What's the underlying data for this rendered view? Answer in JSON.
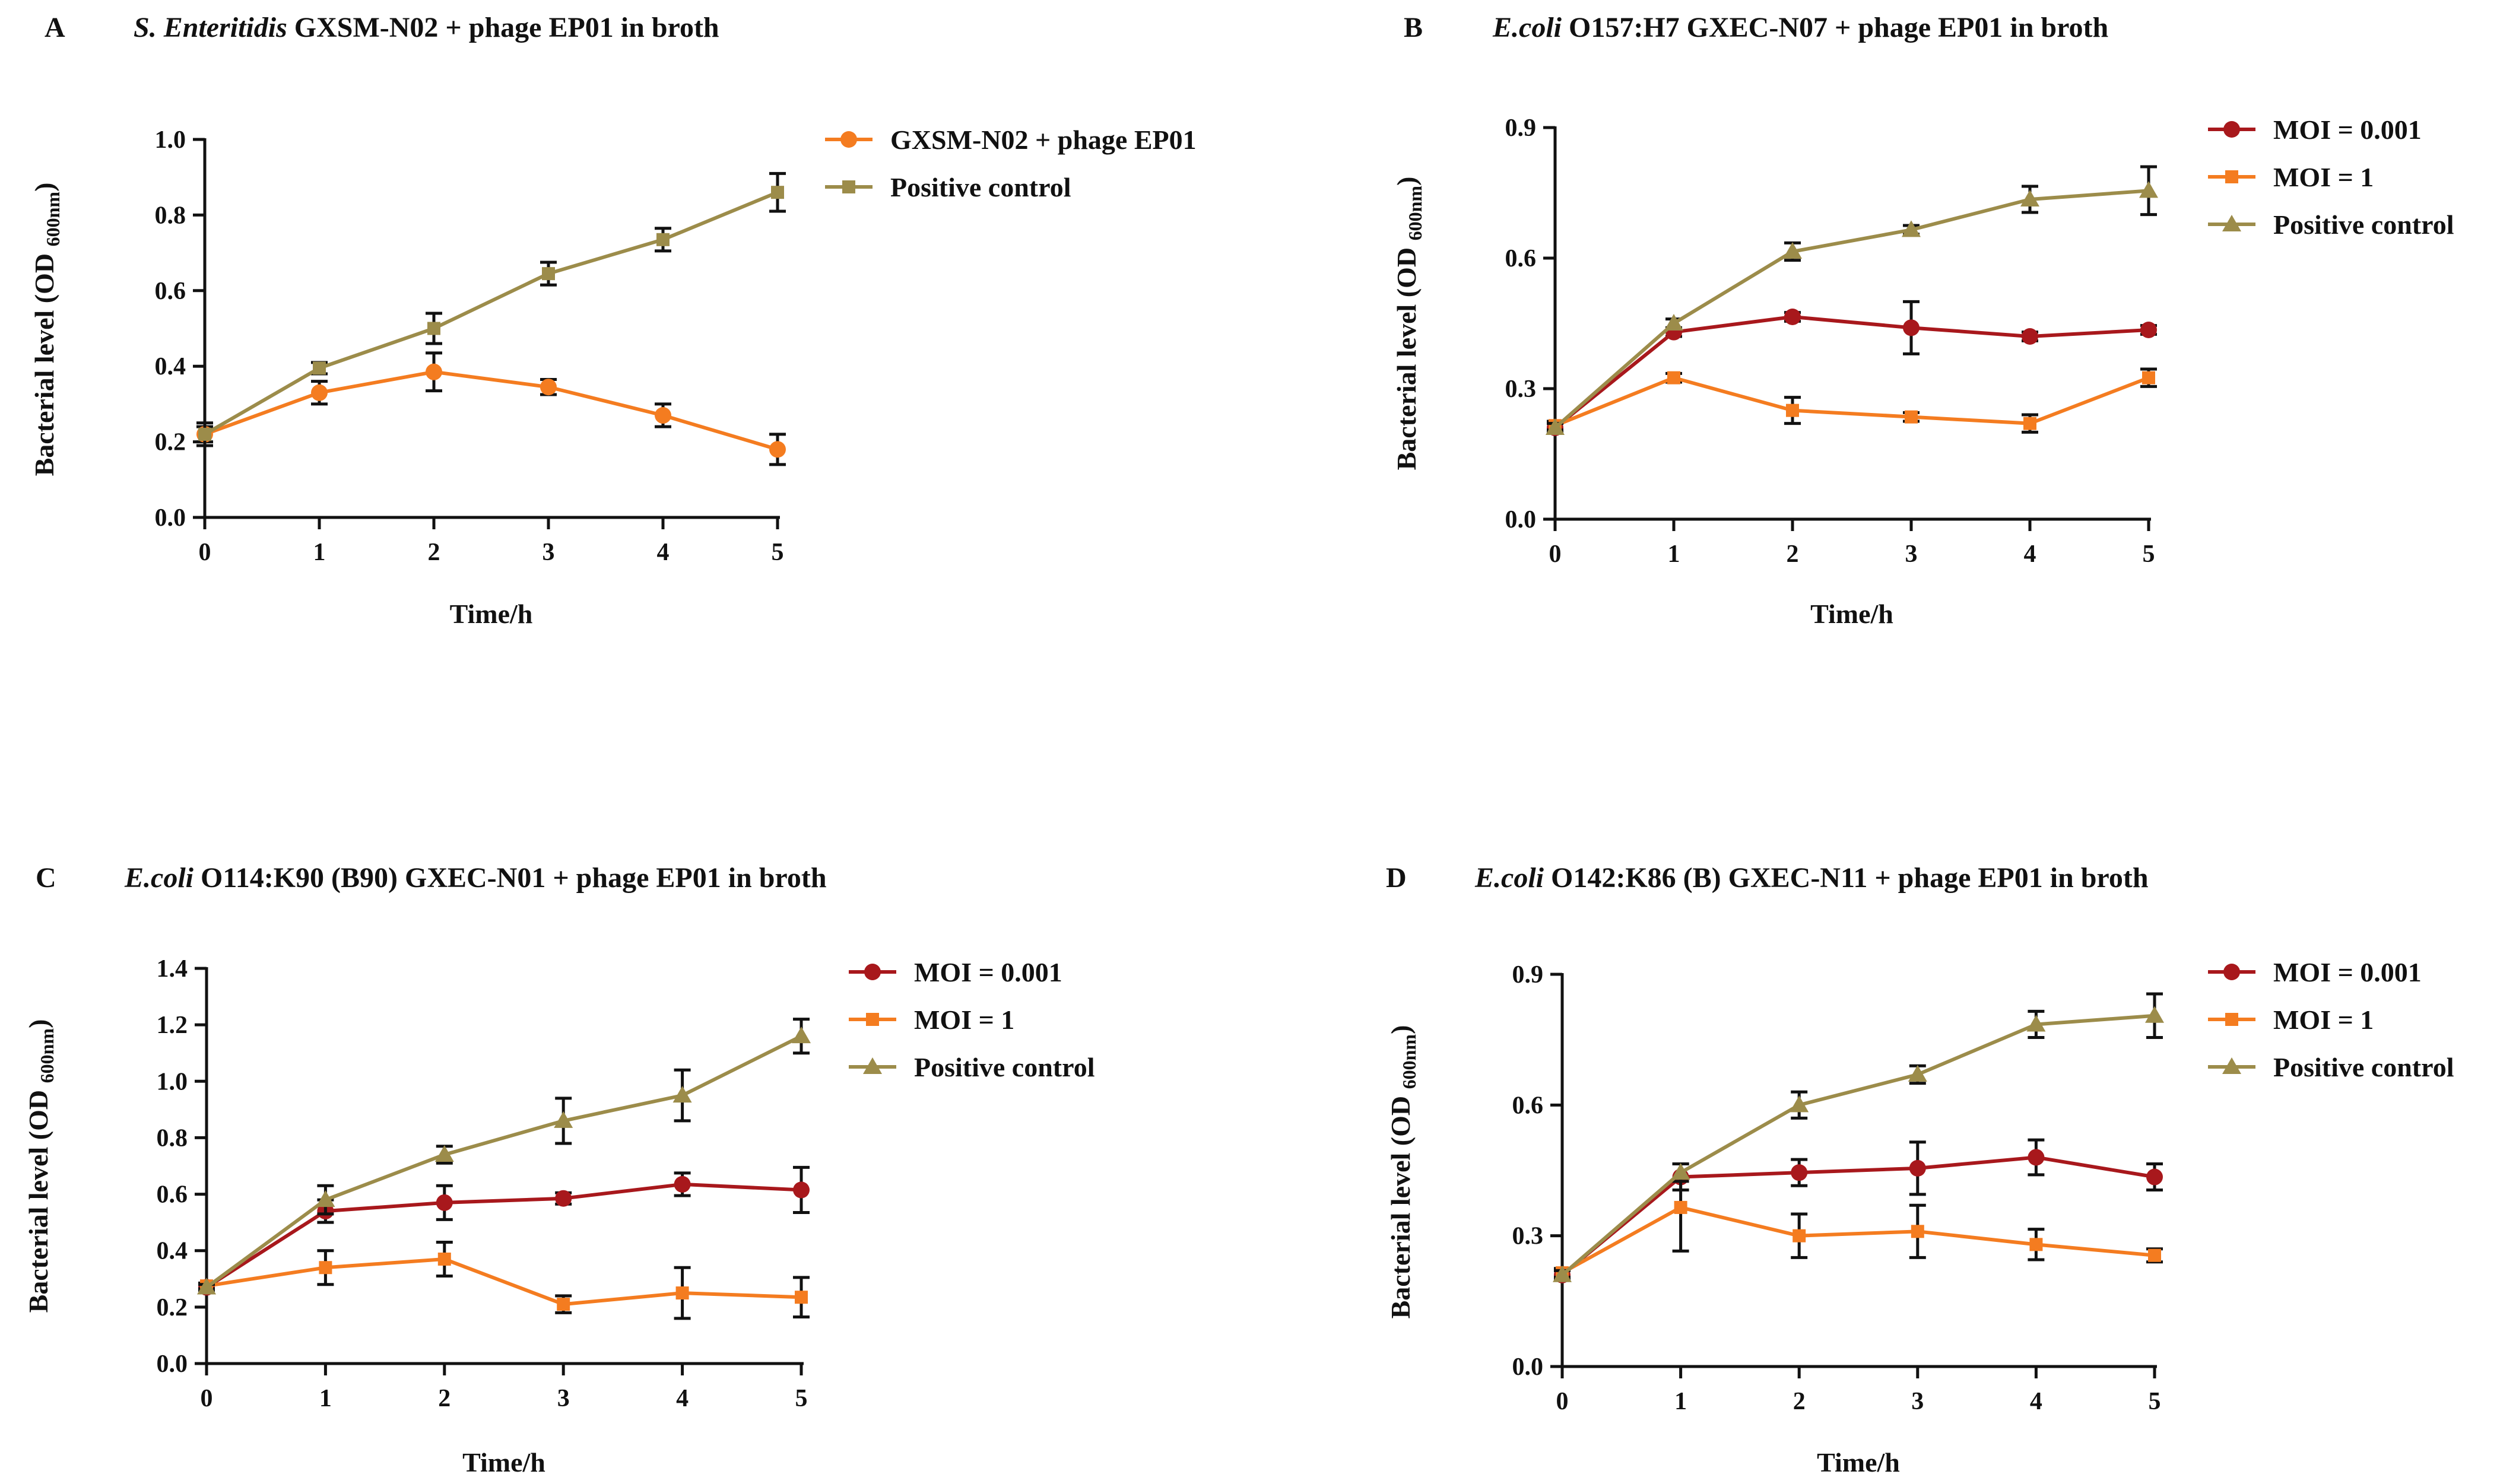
{
  "chart_data": [
    {
      "type": "line",
      "panel": "A",
      "title_italic": "S. Enteritidis",
      "title_rest": " GXSM-N02 + phage EP01 in broth",
      "xlabel": "Time/h",
      "ylabel_main": "Bacterial level (OD ",
      "ylabel_sub": "600nm",
      "ylabel_close": ")",
      "xlim": [
        0,
        5
      ],
      "ylim": [
        0,
        1.0
      ],
      "xticks": [
        "0",
        "1",
        "2",
        "3",
        "4",
        "5"
      ],
      "yticks": [
        "0.0",
        "0.2",
        "0.4",
        "0.6",
        "0.8",
        "1.0"
      ],
      "x": [
        0,
        1,
        2,
        3,
        4,
        5
      ],
      "series": [
        {
          "name": "GXSM-N02 + phage EP01",
          "color": "#f47c20",
          "marker": "circle",
          "values": [
            0.22,
            0.33,
            0.385,
            0.345,
            0.27,
            0.18
          ],
          "errors": [
            0.02,
            0.03,
            0.05,
            0.02,
            0.03,
            0.04
          ]
        },
        {
          "name": "Positive control",
          "color": "#9c8c4a",
          "marker": "square",
          "values": [
            0.22,
            0.395,
            0.5,
            0.645,
            0.735,
            0.86
          ],
          "errors": [
            0.03,
            0.015,
            0.04,
            0.03,
            0.03,
            0.05
          ]
        }
      ]
    },
    {
      "type": "line",
      "panel": "B",
      "title_italic": "E.coli",
      "title_rest": " O157:H7 GXEC-N07 + phage EP01 in broth",
      "xlabel": "Time/h",
      "ylabel_main": "Bacterial level (OD ",
      "ylabel_sub": "600nm",
      "ylabel_close": ")",
      "xlim": [
        0,
        5
      ],
      "ylim": [
        0,
        0.9
      ],
      "xticks": [
        "0",
        "1",
        "2",
        "3",
        "4",
        "5"
      ],
      "yticks": [
        "0.0",
        "0.3",
        "0.6",
        "0.9"
      ],
      "x": [
        0,
        1,
        2,
        3,
        4,
        5
      ],
      "series": [
        {
          "name": "MOI = 0.001",
          "color": "#a8181c",
          "marker": "circle",
          "values": [
            0.21,
            0.43,
            0.465,
            0.44,
            0.42,
            0.435
          ],
          "errors": [
            0.01,
            0.01,
            0.01,
            0.06,
            0.01,
            0.01
          ]
        },
        {
          "name": "MOI = 1",
          "color": "#f47c20",
          "marker": "square",
          "values": [
            0.215,
            0.325,
            0.25,
            0.235,
            0.22,
            0.325
          ],
          "errors": [
            0.01,
            0.01,
            0.03,
            0.01,
            0.02,
            0.02
          ]
        },
        {
          "name": "Positive control",
          "color": "#9c8c4a",
          "marker": "triangle",
          "values": [
            0.21,
            0.45,
            0.615,
            0.665,
            0.735,
            0.755
          ],
          "errors": [
            0.01,
            0.01,
            0.02,
            0.01,
            0.03,
            0.055
          ]
        }
      ]
    },
    {
      "type": "line",
      "panel": "C",
      "title_italic": "E.coli",
      "title_rest": " O114:K90 (B90) GXEC-N01 + phage EP01 in broth",
      "xlabel": "Time/h",
      "ylabel_main": "Bacterial level (OD ",
      "ylabel_sub": "600nm",
      "ylabel_close": ")",
      "xlim": [
        0,
        5
      ],
      "ylim": [
        0,
        1.4
      ],
      "xticks": [
        "0",
        "1",
        "2",
        "3",
        "4",
        "5"
      ],
      "yticks": [
        "0.0",
        "0.2",
        "0.4",
        "0.6",
        "0.8",
        "1.0",
        "1.2",
        "1.4"
      ],
      "x": [
        0,
        1,
        2,
        3,
        4,
        5
      ],
      "series": [
        {
          "name": "MOI = 0.001",
          "color": "#a8181c",
          "marker": "circle",
          "values": [
            0.27,
            0.54,
            0.57,
            0.585,
            0.635,
            0.615
          ],
          "errors": [
            0.01,
            0.04,
            0.06,
            0.02,
            0.04,
            0.08
          ]
        },
        {
          "name": "MOI = 1",
          "color": "#f47c20",
          "marker": "square",
          "values": [
            0.275,
            0.34,
            0.37,
            0.21,
            0.25,
            0.235
          ],
          "errors": [
            0.01,
            0.06,
            0.06,
            0.03,
            0.09,
            0.07
          ]
        },
        {
          "name": "Positive control",
          "color": "#9c8c4a",
          "marker": "triangle",
          "values": [
            0.27,
            0.58,
            0.74,
            0.86,
            0.95,
            1.16
          ],
          "errors": [
            0.01,
            0.05,
            0.03,
            0.08,
            0.09,
            0.06
          ]
        }
      ]
    },
    {
      "type": "line",
      "panel": "D",
      "title_italic": "E.coli",
      "title_rest": " O142:K86 (B) GXEC-N11 + phage EP01 in broth",
      "xlabel": "Time/h",
      "ylabel_main": "Bacterial level (OD ",
      "ylabel_sub": "600nm",
      "ylabel_close": ")",
      "xlim": [
        0,
        5
      ],
      "ylim": [
        0,
        0.9
      ],
      "xticks": [
        "0",
        "1",
        "2",
        "3",
        "4",
        "5"
      ],
      "yticks": [
        "0.0",
        "0.3",
        "0.6",
        "0.9"
      ],
      "x": [
        0,
        1,
        2,
        3,
        4,
        5
      ],
      "series": [
        {
          "name": "MOI = 0.001",
          "color": "#a8181c",
          "marker": "circle",
          "values": [
            0.21,
            0.435,
            0.445,
            0.455,
            0.48,
            0.435
          ],
          "errors": [
            0.01,
            0.03,
            0.03,
            0.06,
            0.04,
            0.03
          ]
        },
        {
          "name": "MOI = 1",
          "color": "#f47c20",
          "marker": "square",
          "values": [
            0.215,
            0.365,
            0.3,
            0.31,
            0.28,
            0.255
          ],
          "errors": [
            0.01,
            0.1,
            0.05,
            0.06,
            0.035,
            0.015
          ]
        },
        {
          "name": "Positive control",
          "color": "#9c8c4a",
          "marker": "triangle",
          "values": [
            0.21,
            0.445,
            0.6,
            0.67,
            0.785,
            0.805
          ],
          "errors": [
            0.01,
            0.02,
            0.03,
            0.02,
            0.03,
            0.05
          ]
        }
      ]
    }
  ]
}
